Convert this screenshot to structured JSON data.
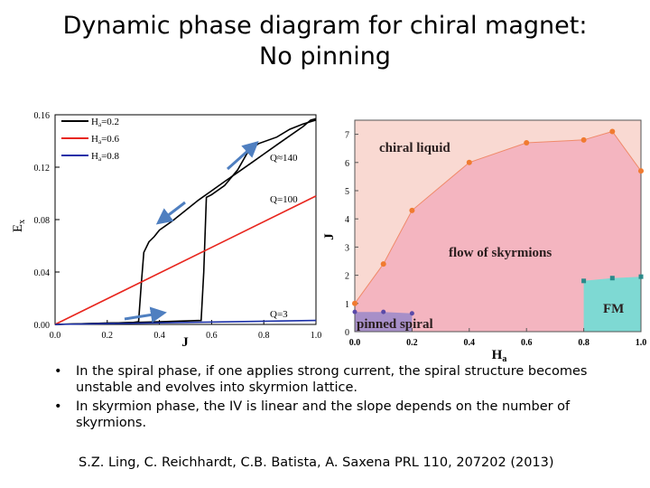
{
  "slide": {
    "title_line1": "Dynamic phase diagram for chiral magnet:",
    "title_line2": "No pinning",
    "bullets": [
      "In the spiral phase, if one applies strong current, the spiral structure becomes unstable and evolves into skyrmion lattice.",
      "In skyrmion phase, the IV is linear and the slope depends on the number of skyrmions."
    ],
    "bullet_symbol": "•",
    "reference": "S.Z. Ling, C. Reichhardt, C.B. Batista, A. Saxena PRL 110, 207202 (2013)"
  },
  "chart_data": [
    {
      "type": "line",
      "title": "",
      "xlabel": "J",
      "ylabel": "Ex",
      "xlim": [
        0,
        1.0
      ],
      "ylim": [
        0,
        0.16
      ],
      "xticks": [
        "0.0",
        "0.2",
        "0.4",
        "0.6",
        "0.8",
        "1.0"
      ],
      "yticks": [
        "0.00",
        "0.04",
        "0.08",
        "0.12",
        "0.16"
      ],
      "legend_position": "top-left",
      "grid": false,
      "series": [
        {
          "name": "Ha=0.2",
          "color": "#000000",
          "points": [
            [
              0.0,
              0.0
            ],
            [
              0.1,
              0.0005
            ],
            [
              0.2,
              0.001
            ],
            [
              0.3,
              0.0015
            ],
            [
              0.32,
              0.002
            ],
            [
              0.33,
              0.03
            ],
            [
              0.34,
              0.055
            ],
            [
              0.36,
              0.063
            ],
            [
              0.38,
              0.067
            ],
            [
              0.4,
              0.072
            ],
            [
              0.45,
              0.079
            ],
            [
              0.5,
              0.087
            ],
            [
              0.55,
              0.095
            ],
            [
              0.6,
              0.102
            ],
            [
              0.65,
              0.109
            ],
            [
              0.7,
              0.116
            ],
            [
              0.75,
              0.123
            ],
            [
              0.8,
              0.13
            ],
            [
              0.85,
              0.137
            ],
            [
              0.9,
              0.144
            ],
            [
              0.95,
              0.151
            ],
            [
              0.98,
              0.156
            ],
            [
              1.0,
              0.157
            ]
          ]
        },
        {
          "name": "Ha=0.2 (upper branch)",
          "color": "#000000",
          "points": [
            [
              0.0,
              0.0
            ],
            [
              0.2,
              0.001
            ],
            [
              0.4,
              0.002
            ],
            [
              0.56,
              0.003
            ],
            [
              0.57,
              0.04
            ],
            [
              0.58,
              0.097
            ],
            [
              0.6,
              0.099
            ],
            [
              0.65,
              0.106
            ],
            [
              0.7,
              0.118
            ],
            [
              0.74,
              0.132
            ],
            [
              0.78,
              0.138
            ],
            [
              0.85,
              0.143
            ],
            [
              0.9,
              0.149
            ],
            [
              0.95,
              0.153
            ],
            [
              1.0,
              0.156
            ]
          ]
        },
        {
          "name": "Ha=0.6",
          "color": "#e8261e",
          "points": [
            [
              0.0,
              0.0
            ],
            [
              1.0,
              0.098
            ]
          ]
        },
        {
          "name": "Ha=0.8",
          "color": "#1a2fa8",
          "points": [
            [
              0.0,
              0.0
            ],
            [
              1.0,
              0.003
            ]
          ]
        }
      ],
      "annotations": [
        "Q≈140",
        "Q=100",
        "Q=3"
      ]
    },
    {
      "type": "area",
      "title": "",
      "xlabel": "Ha",
      "ylabel": "J",
      "xlim": [
        0,
        1.0
      ],
      "ylim": [
        0,
        7.5
      ],
      "xticks": [
        "0.0",
        "0.2",
        "0.4",
        "0.6",
        "0.8",
        "1.0"
      ],
      "yticks": [
        "0",
        "1",
        "2",
        "3",
        "4",
        "5",
        "6",
        "7"
      ],
      "grid": false,
      "regions": [
        {
          "name": "chiral liquid",
          "color": "#f9d9d2"
        },
        {
          "name": "flow of skyrmions",
          "color": "#f4b5c0"
        },
        {
          "name": "pinned spiral",
          "color": "#a78fc8"
        },
        {
          "name": "FM",
          "color": "#7ed9d3"
        }
      ],
      "boundary_chiral_liquid": [
        [
          0.0,
          1.0
        ],
        [
          0.1,
          2.4
        ],
        [
          0.2,
          4.3
        ],
        [
          0.4,
          6.0
        ],
        [
          0.6,
          6.7
        ],
        [
          0.8,
          6.8
        ],
        [
          0.9,
          7.1
        ],
        [
          1.0,
          5.7
        ]
      ],
      "boundary_pinned_spiral": [
        [
          0.0,
          0.7
        ],
        [
          0.1,
          0.7
        ],
        [
          0.2,
          0.65
        ]
      ],
      "boundary_fm": [
        [
          0.8,
          1.8
        ],
        [
          0.9,
          1.9
        ],
        [
          1.0,
          1.95
        ]
      ]
    }
  ]
}
